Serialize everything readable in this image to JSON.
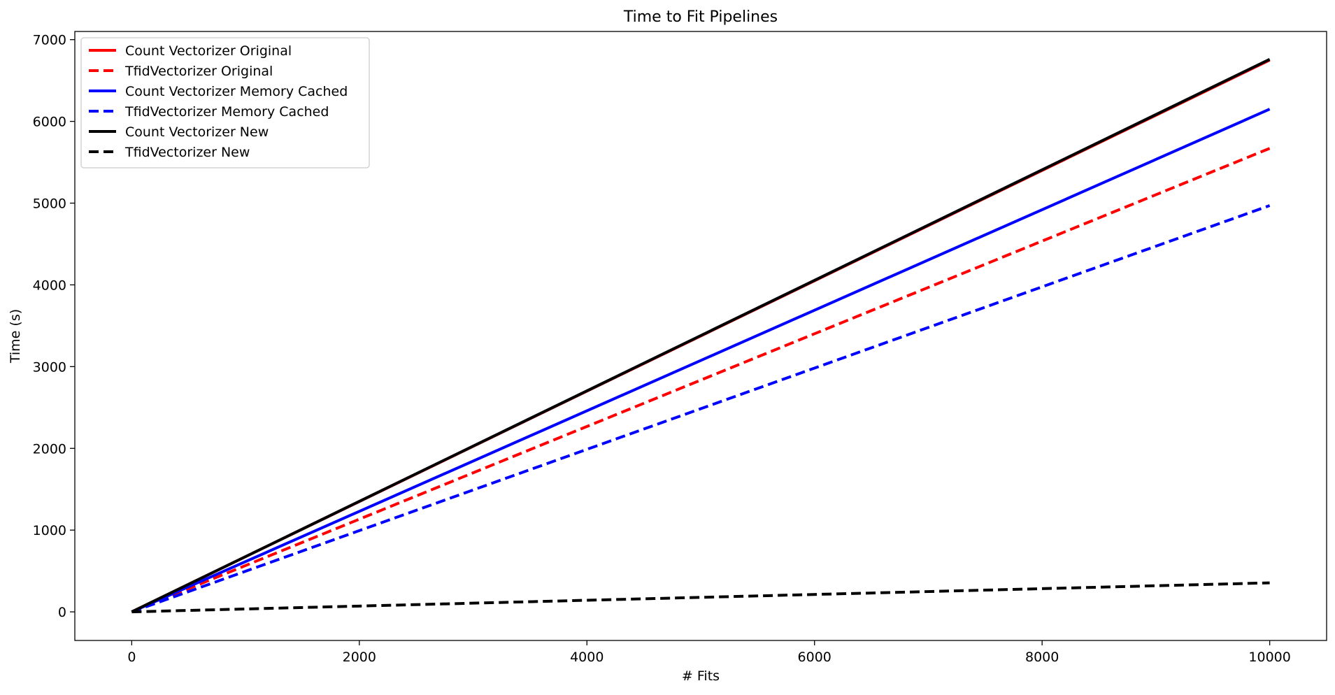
{
  "chart_data": {
    "type": "line",
    "title": "Time to Fit Pipelines",
    "xlabel": "# Fits",
    "ylabel": "Time (s)",
    "xlim": [
      -500,
      10500
    ],
    "ylim": [
      -350,
      7100
    ],
    "x_ticks": [
      0,
      2000,
      4000,
      6000,
      8000,
      10000
    ],
    "y_ticks": [
      0,
      1000,
      2000,
      3000,
      4000,
      5000,
      6000,
      7000
    ],
    "grid": false,
    "legend_position": "top-left",
    "series": [
      {
        "name": "Count Vectorizer Original",
        "color": "#ff0000",
        "style": "solid",
        "x": [
          0,
          10000
        ],
        "y": [
          0,
          6750
        ]
      },
      {
        "name": "TfidVectorizer Original",
        "color": "#ff0000",
        "style": "dashed",
        "x": [
          0,
          10000
        ],
        "y": [
          0,
          5670
        ]
      },
      {
        "name": "Count Vectorizer Memory Cached",
        "color": "#0000ff",
        "style": "solid",
        "x": [
          0,
          10000
        ],
        "y": [
          0,
          6150
        ]
      },
      {
        "name": "TfidVectorizer Memory Cached",
        "color": "#0000ff",
        "style": "dashed",
        "x": [
          0,
          10000
        ],
        "y": [
          0,
          4970
        ]
      },
      {
        "name": "Count Vectorizer New",
        "color": "#000000",
        "style": "solid",
        "x": [
          0,
          10000
        ],
        "y": [
          0,
          6760
        ]
      },
      {
        "name": "TfidVectorizer New",
        "color": "#000000",
        "style": "dashed",
        "x": [
          0,
          10000
        ],
        "y": [
          0,
          355
        ]
      }
    ]
  }
}
